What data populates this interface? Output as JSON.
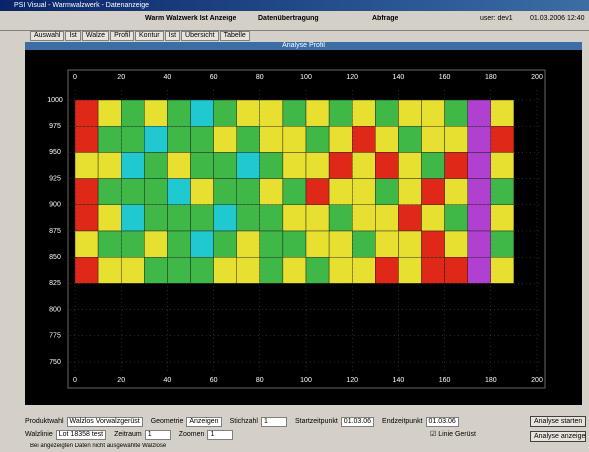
{
  "window": {
    "title": "PSI Visual - Warmwalzwerk - Datenanzeige"
  },
  "toolbar": {
    "left": "Warm Walzwerk Ist Anzeige",
    "middle": "Datenübertragung",
    "query": "Abfrage",
    "user": "user: dev1",
    "datetime": "01.03.2006 12:40"
  },
  "tabs": [
    "Auswahl",
    "Ist",
    "Walze",
    "Profil",
    "Kontur",
    "Ist",
    "Übersicht",
    "Tabelle"
  ],
  "header": "Analyse Profil",
  "chart_data": {
    "type": "heatmap",
    "xbins": [
      0,
      10,
      20,
      30,
      40,
      50,
      60,
      70,
      80,
      90,
      100,
      110,
      120,
      130,
      140,
      150,
      160,
      170,
      180,
      190
    ],
    "ybins": [
      1000,
      975,
      950,
      925,
      900,
      875,
      850,
      825
    ],
    "values": [
      [
        4,
        3,
        2,
        3,
        2,
        1,
        2,
        3,
        3,
        2,
        3,
        2,
        3,
        2,
        3,
        3,
        2,
        5,
        3
      ],
      [
        4,
        2,
        2,
        1,
        2,
        2,
        3,
        2,
        3,
        3,
        2,
        3,
        4,
        3,
        2,
        3,
        3,
        5,
        4
      ],
      [
        3,
        3,
        1,
        2,
        3,
        2,
        2,
        1,
        2,
        3,
        3,
        4,
        3,
        4,
        3,
        2,
        4,
        5,
        3
      ],
      [
        4,
        2,
        2,
        2,
        1,
        3,
        2,
        2,
        3,
        2,
        4,
        3,
        3,
        2,
        3,
        4,
        3,
        5,
        2
      ],
      [
        4,
        3,
        1,
        2,
        2,
        2,
        1,
        2,
        2,
        3,
        3,
        2,
        3,
        3,
        4,
        3,
        2,
        5,
        3
      ],
      [
        3,
        2,
        2,
        3,
        2,
        1,
        2,
        3,
        2,
        2,
        3,
        3,
        2,
        3,
        3,
        4,
        3,
        5,
        2
      ],
      [
        4,
        3,
        3,
        2,
        2,
        2,
        3,
        3,
        2,
        3,
        2,
        3,
        3,
        4,
        3,
        4,
        4,
        5,
        3
      ]
    ],
    "color_scale": [
      "#2040c0",
      "#20c8d0",
      "#40b848",
      "#e8e030",
      "#e02818",
      "#b040d0"
    ],
    "xlim": [
      0,
      200
    ],
    "xticks": [
      0,
      20,
      40,
      60,
      80,
      100,
      120,
      140,
      160,
      180,
      200
    ],
    "ylim": [
      750,
      1000
    ],
    "yticks": [
      1000,
      975,
      950,
      925,
      900,
      875,
      850,
      825,
      800,
      775,
      750
    ],
    "grid": true
  },
  "controls": {
    "row1": [
      {
        "label": "Produktwahl",
        "value": "Walzlos Vorwalzgerüst"
      },
      {
        "label": "Geometrie",
        "value": "Anzeigen"
      },
      {
        "label": "Stichzahl",
        "value": "1"
      },
      {
        "label": "Startzeitpunkt",
        "value": "01.03.06"
      },
      {
        "label": "Endzeitpunkt",
        "value": "01.03.06"
      }
    ],
    "row2": [
      {
        "label": "Walzlinie",
        "value": "Lot 18358 test"
      },
      {
        "label": "Zeitraum",
        "value": "1"
      },
      {
        "label": "Zoomen",
        "value": "1"
      }
    ],
    "checkbox": "Linie Gerüst",
    "buttons": [
      "Analyse starten",
      "Analyse anzeigen"
    ],
    "status": "Bei angezeigten Daten nicht ausgewählte Walzlose"
  }
}
